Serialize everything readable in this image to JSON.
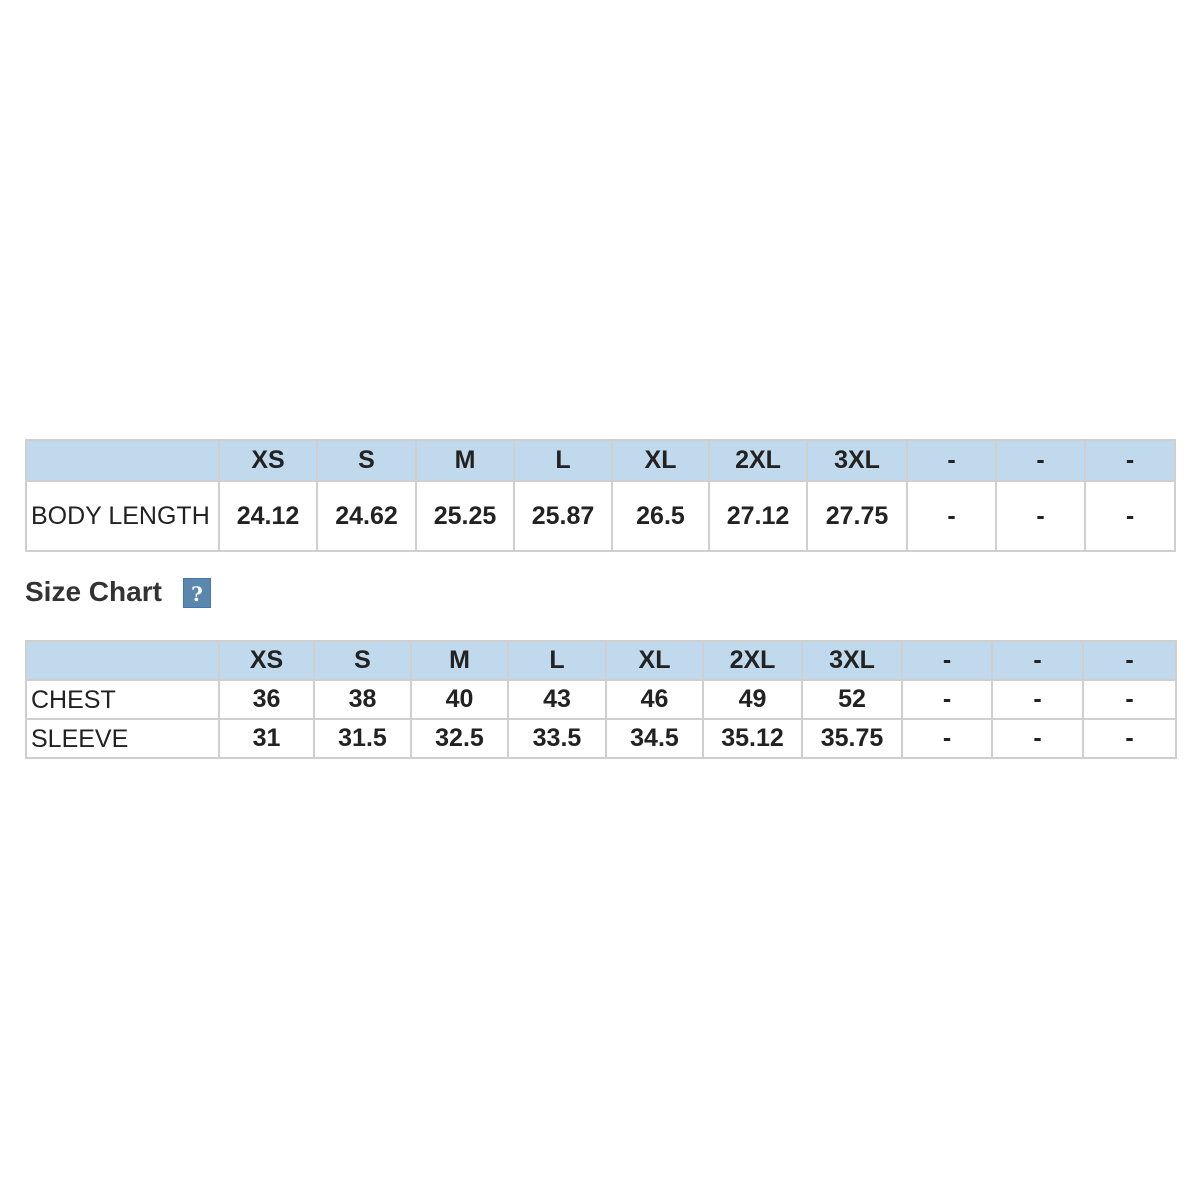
{
  "length_table": {
    "sizes": [
      "XS",
      "S",
      "M",
      "L",
      "XL",
      "2XL",
      "3XL",
      "-",
      "-",
      "-"
    ],
    "rows": [
      {
        "label": "BODY LENGTH",
        "values": [
          "24.12",
          "24.62",
          "25.25",
          "25.87",
          "26.5",
          "27.12",
          "27.75",
          "-",
          "-",
          "-"
        ]
      }
    ]
  },
  "size_chart": {
    "title": "Size Chart",
    "help_label": "?",
    "help_color": "#5b87ad",
    "header_color": "#c1d9ec",
    "sizes": [
      "XS",
      "S",
      "M",
      "L",
      "XL",
      "2XL",
      "3XL",
      "-",
      "-",
      "-"
    ],
    "rows": [
      {
        "label": "CHEST",
        "values": [
          "36",
          "38",
          "40",
          "43",
          "46",
          "49",
          "52",
          "-",
          "-",
          "-"
        ]
      },
      {
        "label": "SLEEVE",
        "values": [
          "31",
          "31.5",
          "32.5",
          "33.5",
          "34.5",
          "35.12",
          "35.75",
          "-",
          "-",
          "-"
        ]
      }
    ]
  }
}
